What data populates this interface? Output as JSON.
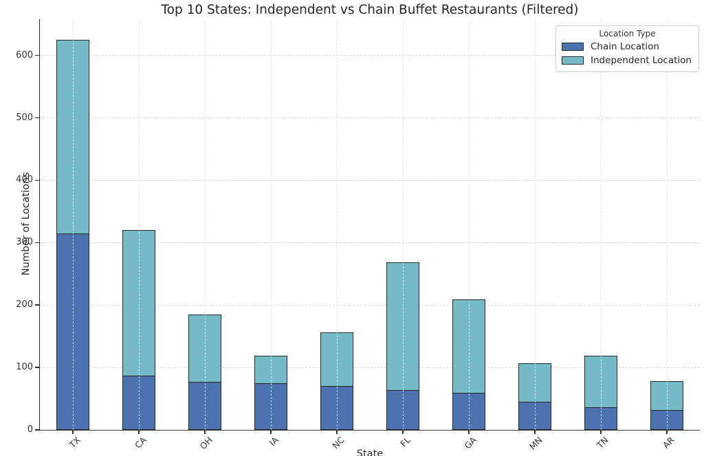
{
  "figure": {
    "title": "Top 10 States: Independent vs Chain Buffet Restaurants (Filtered)",
    "xlabel": "State",
    "ylabel": "Number of Locations"
  },
  "legend": {
    "title": "Location Type",
    "entries": [
      {
        "label": "Chain Location",
        "color": "#4C72B0"
      },
      {
        "label": "Independent Location",
        "color": "#76BCC8"
      }
    ]
  },
  "chart_data": {
    "type": "bar",
    "stacked": true,
    "title": "Top 10 States: Independent vs Chain Buffet Restaurants (Filtered)",
    "xlabel": "State",
    "ylabel": "Number of Locations",
    "categories": [
      "TX",
      "CA",
      "OH",
      "IA",
      "NC",
      "FL",
      "GA",
      "MN",
      "TN",
      "AR"
    ],
    "series": [
      {
        "name": "Chain Location",
        "color": "#4C72B0",
        "values": [
          315,
          88,
          78,
          75,
          71,
          64,
          60,
          46,
          37,
          33
        ]
      },
      {
        "name": "Independent Location",
        "color": "#76BCC8",
        "values": [
          310,
          232,
          107,
          44,
          85,
          204,
          149,
          61,
          82,
          45
        ]
      }
    ],
    "totals": [
      625,
      320,
      185,
      119,
      156,
      268,
      209,
      107,
      119,
      78
    ],
    "y_ticks": [
      0,
      100,
      200,
      300,
      400,
      500,
      600
    ],
    "ylim": [
      0,
      658
    ],
    "grid": true,
    "grid_style": "dashed",
    "legend_position": "upper right",
    "bar_edge_color": "#262626",
    "x_tick_rotation": 45
  }
}
